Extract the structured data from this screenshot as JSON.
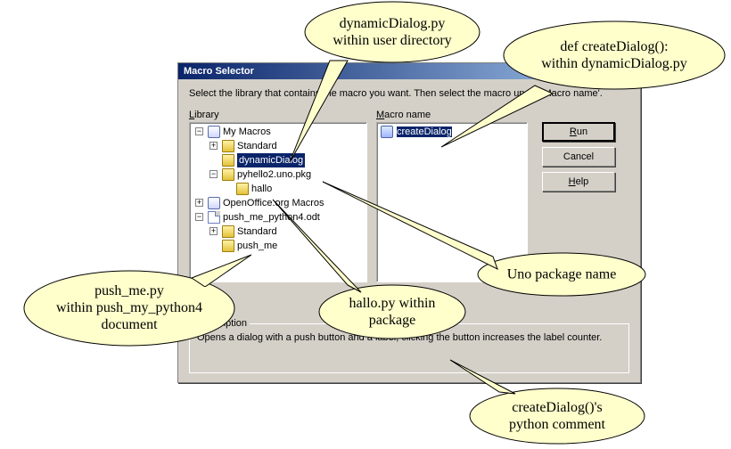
{
  "colors": {
    "dialog_bg": "#d4d0c8",
    "titlebar_start": "#0a246a",
    "titlebar_end": "#a6caf0",
    "selection": "#0a246a",
    "callout_fill": "#ffffcc"
  },
  "dialog": {
    "title": "Macro Selector",
    "instruction": "Select the library that contains the macro you want. Then select the macro under 'Macro name'.",
    "library_label": "Library",
    "macro_label": "Macro name",
    "description_label": "Description",
    "description_text": "Opens a dialog with a push button and a label, clicking the button increases the label counter."
  },
  "buttons": {
    "run": "Run",
    "cancel": "Cancel",
    "help": "Help"
  },
  "tree": {
    "root1": "My Macros",
    "r1_standard": "Standard",
    "r1_dynamic": "dynamicDialog",
    "r1_pkg": "pyhello2.uno.pkg",
    "r1_hallo": "hallo",
    "root2": "OpenOffice.org Macros",
    "root3": "push_me_python4.odt",
    "r3_standard": "Standard",
    "r3_pushme": "push_me"
  },
  "macro_list": {
    "item0": "createDialog"
  },
  "callouts": {
    "c1": "dynamicDialog.py\nwithin user directory",
    "c2": "def createDialog():\nwithin dynamicDialog.py",
    "c3": "push_me.py\nwithin push_my_python4\ndocument",
    "c4": "hallo.py within\npackage",
    "c5": "Uno package name",
    "c6": "createDialog()'s\npython comment"
  }
}
